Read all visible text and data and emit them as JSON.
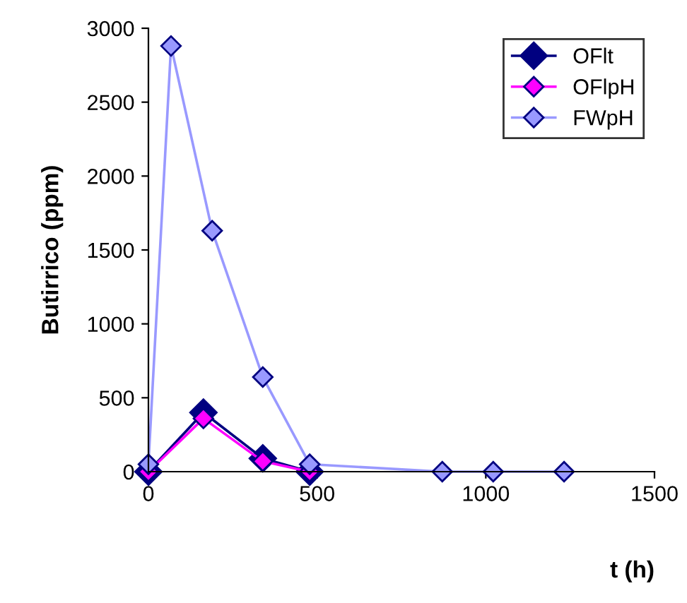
{
  "chart_data": {
    "type": "line",
    "xlabel": "t (h)",
    "ylabel": "Butirrico (ppm)",
    "xlim": [
      0,
      1500
    ],
    "xticks": [
      0,
      500,
      1000,
      1500
    ],
    "ylim": [
      0,
      3000
    ],
    "yticks": [
      0,
      500,
      1000,
      1500,
      2000,
      2500,
      3000
    ],
    "marker": "diamond",
    "line_style": "solid",
    "legend": "top right",
    "grid": false,
    "series": [
      {
        "name": "OFlt",
        "color": "#000080",
        "x": [
          0,
          163,
          339,
          478
        ],
        "values": [
          0,
          400,
          90,
          0
        ]
      },
      {
        "name": "OFlpH",
        "color": "#ff00ff",
        "x": [
          0,
          163,
          339,
          478
        ],
        "values": [
          0,
          360,
          70,
          0
        ]
      },
      {
        "name": "FWpH",
        "color": "#9999ff",
        "x": [
          0,
          67,
          189,
          339,
          478,
          871,
          1022,
          1232
        ],
        "values": [
          50,
          2880,
          1630,
          640,
          50,
          0,
          0,
          0
        ]
      }
    ]
  }
}
